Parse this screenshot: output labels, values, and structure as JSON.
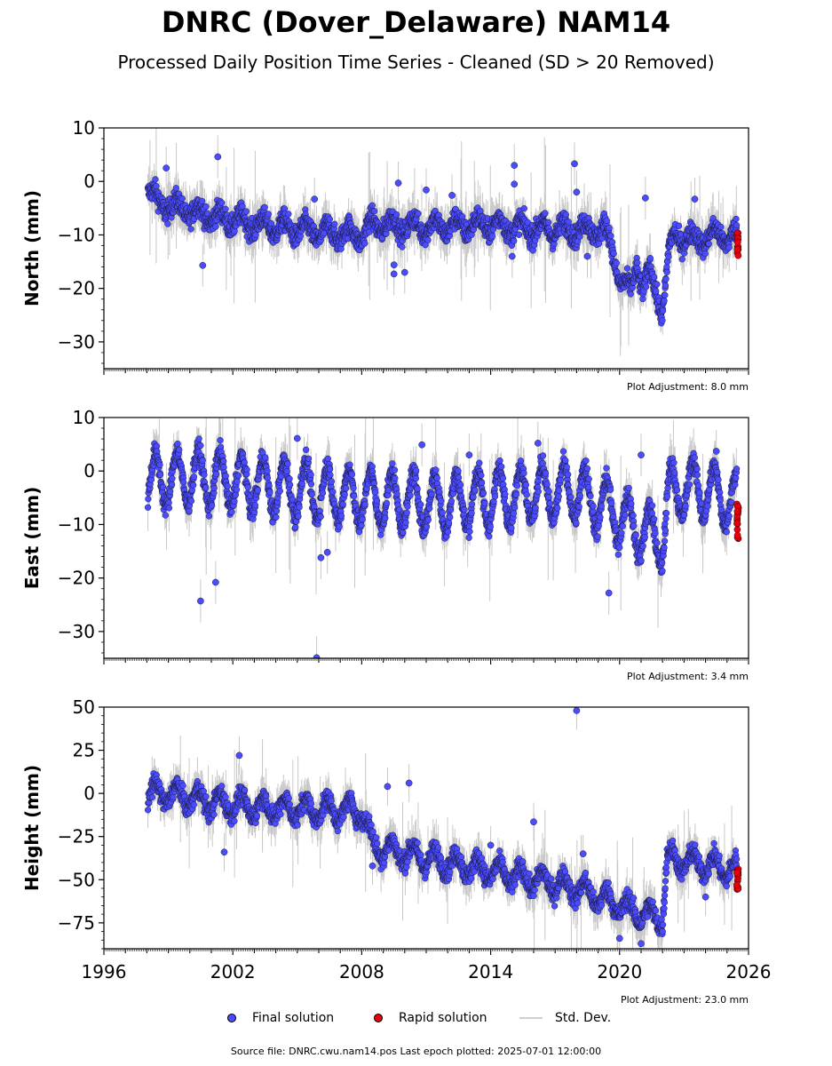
{
  "header": {
    "title": "DNRC (Dover_Delaware) NAM14",
    "subtitle": "Processed Daily Position Time Series - Cleaned (SD > 20 Removed)"
  },
  "footer": {
    "source": "Source file: DNRC.cwu.nam14.pos  Last epoch plotted: 2025-07-01 12:00:00"
  },
  "legend": {
    "final": "Final solution",
    "rapid": "Rapid solution",
    "stddev": "Std. Dev."
  },
  "colors": {
    "final": "#4b4bff",
    "rapid": "#e8000b",
    "stddev": "#c8c8c8"
  },
  "chart_data": {
    "type": "scatter",
    "x_ticks": [
      1996,
      2002,
      2008,
      2014,
      2020,
      2026
    ],
    "xlim": [
      1996,
      2026
    ],
    "panels": [
      {
        "ylabel": "North (mm)",
        "ylim": [
          -35,
          10
        ],
        "yticks": [
          10,
          0,
          -10,
          -20,
          -30
        ],
        "adjustment": "Plot Adjustment: 8.0 mm",
        "trend": [
          [
            1998.0,
            -1
          ],
          [
            1998.5,
            -4
          ],
          [
            1999.5,
            -5
          ],
          [
            2001,
            -6.5
          ],
          [
            2003,
            -8
          ],
          [
            2006,
            -9.5
          ],
          [
            2008,
            -10
          ],
          [
            2008.5,
            -8
          ],
          [
            2011,
            -8.5
          ],
          [
            2014,
            -8
          ],
          [
            2016,
            -9
          ],
          [
            2019.3,
            -9
          ],
          [
            2019.6,
            -12
          ],
          [
            2020.0,
            -18
          ],
          [
            2020.5,
            -21
          ],
          [
            2020.8,
            -15
          ],
          [
            2021.1,
            -20
          ],
          [
            2021.4,
            -17
          ],
          [
            2021.8,
            -22
          ],
          [
            2022.0,
            -24
          ],
          [
            2022.3,
            -13
          ],
          [
            2022.6,
            -10
          ],
          [
            2023.5,
            -11
          ],
          [
            2024.5,
            -10
          ],
          [
            2025.5,
            -10.5
          ]
        ],
        "amp": 1.5,
        "noise": 1.8,
        "outliers": [
          [
            1998.9,
            2.5
          ],
          [
            2001.3,
            4.6
          ],
          [
            2000.6,
            -15.7
          ],
          [
            2005.8,
            -3.3
          ],
          [
            2009.7,
            -0.3
          ],
          [
            2009.5,
            -15.6
          ],
          [
            2009.5,
            -17.3
          ],
          [
            2010.0,
            -17.0
          ],
          [
            2011.0,
            -1.6
          ],
          [
            2012.2,
            -2.6
          ],
          [
            2015.1,
            3.0
          ],
          [
            2015.1,
            -0.5
          ],
          [
            2017.9,
            3.3
          ],
          [
            2018.0,
            -2.0
          ],
          [
            2021.2,
            -3.1
          ],
          [
            2023.5,
            -3.3
          ],
          [
            2015.0,
            -14.0
          ],
          [
            2018.5,
            -14.0
          ]
        ],
        "rapid_range": [
          -14,
          -9
        ]
      },
      {
        "ylabel": "East (mm)",
        "ylim": [
          -35,
          10
        ],
        "yticks": [
          10,
          0,
          -10,
          -20,
          -30
        ],
        "adjustment": "Plot Adjustment: 3.4 mm",
        "trend": [
          [
            1998.0,
            -2
          ],
          [
            2000,
            -1
          ],
          [
            2004,
            -3
          ],
          [
            2008,
            -5
          ],
          [
            2012,
            -6
          ],
          [
            2016,
            -4
          ],
          [
            2018,
            -4
          ],
          [
            2019.5,
            -7
          ],
          [
            2020.5,
            -10
          ],
          [
            2021.5,
            -12
          ],
          [
            2022.0,
            -13
          ],
          [
            2022.3,
            -4
          ],
          [
            2023.5,
            -3
          ],
          [
            2025.5,
            -6
          ]
        ],
        "amp": 5.0,
        "noise": 1.8,
        "outliers": [
          [
            2000.5,
            -24.3
          ],
          [
            2001.2,
            -20.8
          ],
          [
            2005.0,
            6.1
          ],
          [
            2005.9,
            -34.9
          ],
          [
            2006.1,
            -16.2
          ],
          [
            2006.4,
            -15.2
          ],
          [
            2010.8,
            4.9
          ],
          [
            2016.2,
            5.2
          ],
          [
            2019.5,
            -22.8
          ],
          [
            2021.0,
            3.0
          ],
          [
            2024.5,
            3.7
          ],
          [
            2013.0,
            3.0
          ]
        ],
        "rapid_range": [
          -13,
          -6
        ]
      },
      {
        "ylabel": "Height (mm)",
        "ylim": [
          -90,
          50
        ],
        "yticks": [
          50,
          25,
          0,
          -25,
          -50,
          -75
        ],
        "adjustment": "Plot Adjustment: 23.0 mm",
        "trend": [
          [
            1998.0,
            0
          ],
          [
            1999,
            0
          ],
          [
            2001,
            -5
          ],
          [
            2003,
            -8
          ],
          [
            2005,
            -9
          ],
          [
            2007,
            -10
          ],
          [
            2008.0,
            -10
          ],
          [
            2008.5,
            -30
          ],
          [
            2010,
            -35
          ],
          [
            2012,
            -40
          ],
          [
            2014,
            -45
          ],
          [
            2016,
            -50
          ],
          [
            2018,
            -55
          ],
          [
            2020,
            -65
          ],
          [
            2021,
            -70
          ],
          [
            2022,
            -72
          ],
          [
            2022.2,
            -38
          ],
          [
            2023.5,
            -40
          ],
          [
            2025.5,
            -45
          ]
        ],
        "amp": 6.0,
        "noise": 5.0,
        "outliers": [
          [
            2018.0,
            48.0
          ],
          [
            2002.3,
            22.0
          ],
          [
            2001.6,
            -34.0
          ],
          [
            2008.5,
            -42.0
          ],
          [
            2009.2,
            4.0
          ],
          [
            2010.2,
            6.0
          ],
          [
            2016.0,
            -16.5
          ],
          [
            2018.3,
            -35.0
          ],
          [
            2020.0,
            -84.0
          ],
          [
            2021.0,
            -87.0
          ],
          [
            2024.0,
            -60.0
          ],
          [
            2014.0,
            -30.0
          ]
        ],
        "rapid_range": [
          -57,
          -43
        ]
      }
    ]
  }
}
